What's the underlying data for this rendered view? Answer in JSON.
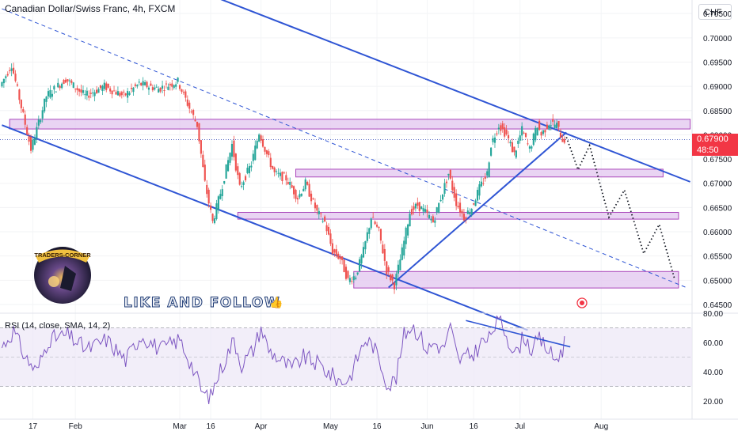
{
  "header": {
    "title": "Canadian Dollar/Swiss Franc, 4h, FXCM",
    "currency": "CHF"
  },
  "price_tag": {
    "price": "0.67900",
    "countdown": "48:50",
    "color": "#f23645"
  },
  "overlay": {
    "like_follow": "LIKE AND FOLLOW",
    "thumb_icon": "thumbs-up-icon",
    "logo_text": "TRADERS-CORNER",
    "play_icon": "play-circle-icon"
  },
  "colors": {
    "trendline": "#2f55d4",
    "zone_fill": "#e6cdf2",
    "zone_stroke": "#9c27b0",
    "candle_up": "#26a69a",
    "candle_down": "#ef5350",
    "rsi_line": "#7e57c2",
    "rsi_band": "#ede7f6"
  },
  "chart_data": [
    {
      "type": "candlestick",
      "title": "Canadian Dollar/Swiss Franc, 4h, FXCM",
      "ylabel": "CHF",
      "ylim": [
        0.6432,
        0.7078
      ],
      "y_ticks": [
        "0.70500",
        "0.70000",
        "0.69500",
        "0.69000",
        "0.68500",
        "0.68000",
        "0.67500",
        "0.67000",
        "0.66500",
        "0.66000",
        "0.65500",
        "0.65000",
        "0.64500"
      ],
      "x_ticks": [
        "17",
        "Feb",
        "Mar",
        "16",
        "Apr",
        "May",
        "16",
        "Jun",
        "16",
        "Jul",
        "Aug"
      ],
      "price_path": [
        [
          -0.5,
          0.689
        ],
        [
          0,
          0.69
        ],
        [
          3,
          0.6945
        ],
        [
          5,
          0.6875
        ],
        [
          8,
          0.677
        ],
        [
          12,
          0.688
        ],
        [
          17,
          0.6915
        ],
        [
          22,
          0.688
        ],
        [
          27,
          0.69
        ],
        [
          32,
          0.688
        ],
        [
          36,
          0.6905
        ],
        [
          41,
          0.6895
        ],
        [
          46,
          0.691
        ],
        [
          49,
          0.6855
        ],
        [
          51,
          0.682
        ],
        [
          53,
          0.67
        ],
        [
          55,
          0.662
        ],
        [
          57,
          0.668
        ],
        [
          60,
          0.678
        ],
        [
          62,
          0.669
        ],
        [
          65,
          0.674
        ],
        [
          67,
          0.6805
        ],
        [
          69,
          0.676
        ],
        [
          71,
          0.672
        ],
        [
          74,
          0.671
        ],
        [
          77,
          0.667
        ],
        [
          79,
          0.67
        ],
        [
          82,
          0.664
        ],
        [
          84,
          0.662
        ],
        [
          86,
          0.656
        ],
        [
          88,
          0.6545
        ],
        [
          90,
          0.65
        ],
        [
          92,
          0.651
        ],
        [
          94,
          0.656
        ],
        [
          96,
          0.663
        ],
        [
          98,
          0.66
        ],
        [
          100,
          0.652
        ],
        [
          102,
          0.649
        ],
        [
          104,
          0.656
        ],
        [
          106,
          0.664
        ],
        [
          108,
          0.6655
        ],
        [
          110,
          0.664
        ],
        [
          112,
          0.662
        ],
        [
          114,
          0.667
        ],
        [
          116,
          0.672
        ],
        [
          118,
          0.666
        ],
        [
          120,
          0.663
        ],
        [
          122,
          0.665
        ],
        [
          124,
          0.669
        ],
        [
          126,
          0.672
        ],
        [
          127,
          0.678
        ],
        [
          129,
          0.682
        ],
        [
          131,
          0.68
        ],
        [
          133,
          0.676
        ],
        [
          135,
          0.681
        ],
        [
          137,
          0.677
        ],
        [
          139,
          0.682
        ],
        [
          140,
          0.68
        ],
        [
          142,
          0.6825
        ],
        [
          144,
          0.682
        ],
        [
          145.5,
          0.679
        ]
      ],
      "zones": [
        {
          "x0": 2,
          "x1": 178,
          "ylo": 0.6812,
          "yhi": 0.6832
        },
        {
          "x0": 76,
          "x1": 171,
          "ylo": 0.6713,
          "yhi": 0.6729
        },
        {
          "x0": 61,
          "x1": 175,
          "ylo": 0.6626,
          "yhi": 0.664
        },
        {
          "x0": 91,
          "x1": 175,
          "ylo": 0.6484,
          "yhi": 0.6518
        }
      ],
      "trendlines": [
        {
          "style": "solid",
          "points": [
            [
              50,
              0.71
            ],
            [
              178,
              0.6703
            ]
          ]
        },
        {
          "style": "solid",
          "points": [
            [
              0,
              0.682
            ],
            [
              136,
              0.6397
            ]
          ]
        },
        {
          "style": "solid",
          "points": [
            [
              100,
              0.6485
            ],
            [
              146,
              0.6805
            ]
          ]
        },
        {
          "style": "dashed",
          "points": [
            [
              0,
              0.706
            ],
            [
              177,
              0.6485
            ]
          ]
        },
        {
          "style": "dotted",
          "points": [
            [
              -0.5,
              0.679
            ],
            [
              178,
              0.679
            ]
          ]
        }
      ],
      "projection": [
        [
          146,
          0.6795
        ],
        [
          149,
          0.6728
        ],
        [
          152,
          0.6778
        ],
        [
          157,
          0.663
        ],
        [
          161,
          0.6686
        ],
        [
          166,
          0.6555
        ],
        [
          170,
          0.6615
        ],
        [
          174,
          0.6502
        ]
      ]
    },
    {
      "type": "line",
      "title": "RSI (14, close, SMA, 14, 2)",
      "ylim": [
        13,
        80
      ],
      "y_ticks": [
        "80.00",
        "60.00",
        "40.00",
        "20.00"
      ],
      "band": [
        30,
        70
      ],
      "mid": 50,
      "rsi_path": [
        [
          -0.5,
          55
        ],
        [
          3,
          68
        ],
        [
          6,
          50
        ],
        [
          9,
          40
        ],
        [
          12,
          62
        ],
        [
          17,
          65
        ],
        [
          22,
          55
        ],
        [
          27,
          62
        ],
        [
          32,
          48
        ],
        [
          36,
          65
        ],
        [
          41,
          55
        ],
        [
          46,
          62
        ],
        [
          49,
          45
        ],
        [
          52,
          25
        ],
        [
          54,
          23
        ],
        [
          56,
          38
        ],
        [
          60,
          62
        ],
        [
          62,
          45
        ],
        [
          65,
          55
        ],
        [
          67,
          70
        ],
        [
          69,
          55
        ],
        [
          72,
          48
        ],
        [
          75,
          42
        ],
        [
          78,
          50
        ],
        [
          82,
          45
        ],
        [
          85,
          38
        ],
        [
          88,
          33
        ],
        [
          90,
          36
        ],
        [
          92,
          50
        ],
        [
          94,
          62
        ],
        [
          96,
          58
        ],
        [
          98,
          45
        ],
        [
          100,
          30
        ],
        [
          102,
          36
        ],
        [
          104,
          65
        ],
        [
          106,
          72
        ],
        [
          108,
          65
        ],
        [
          110,
          55
        ],
        [
          112,
          60
        ],
        [
          114,
          55
        ],
        [
          116,
          70
        ],
        [
          118,
          48
        ],
        [
          120,
          50
        ],
        [
          122,
          52
        ],
        [
          124,
          60
        ],
        [
          126,
          62
        ],
        [
          127,
          70
        ],
        [
          129,
          75
        ],
        [
          131,
          62
        ],
        [
          133,
          52
        ],
        [
          135,
          65
        ],
        [
          137,
          55
        ],
        [
          139,
          62
        ],
        [
          141,
          56
        ],
        [
          143,
          48
        ],
        [
          145,
          55
        ],
        [
          145.5,
          60
        ]
      ],
      "trendline": [
        [
          120,
          75
        ],
        [
          147,
          57
        ]
      ]
    }
  ]
}
